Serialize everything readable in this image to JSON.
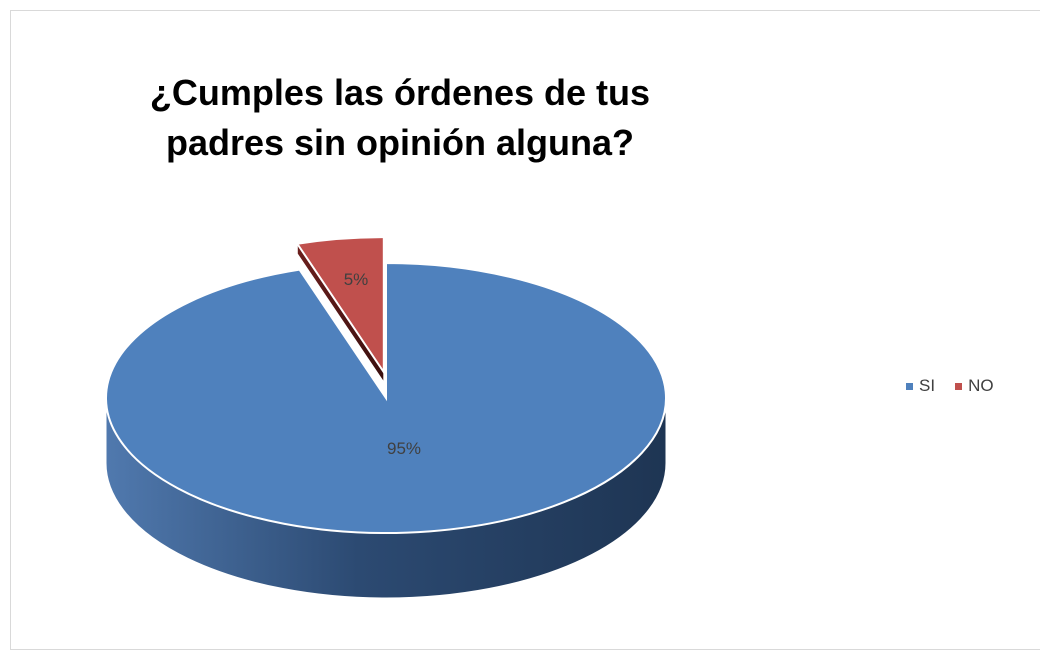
{
  "chart_data": {
    "type": "pie",
    "title": "¿Cumples las órdenes de tus padres sin opinión alguna?",
    "categories": [
      "SI",
      "NO"
    ],
    "values": [
      95,
      5
    ],
    "labels": [
      "95%",
      "5%"
    ],
    "colors": [
      "#4f81bd",
      "#c0504d"
    ],
    "legend_position": "right",
    "style": "3d-pie-exploded"
  }
}
